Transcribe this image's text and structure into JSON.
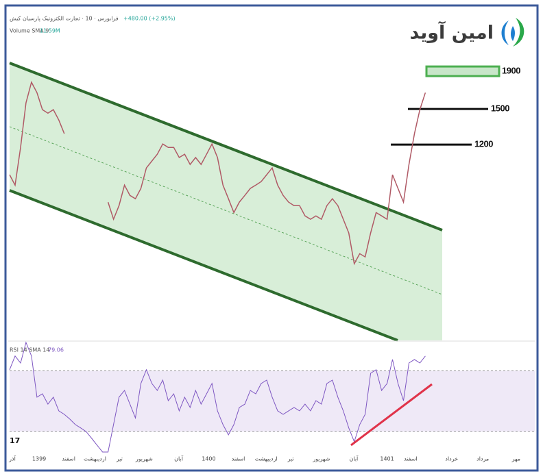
{
  "brand": "امین آوید",
  "chart_data": [
    {
      "type": "line",
      "title": "فرابورس · 10 · تجارت الکترونیک پارسیان کیش",
      "change": "+480.00 (+2.95%)",
      "volume_label": "Volume SMA 9",
      "volume_value": "11.59M",
      "log_scale": true,
      "color": "#b05a66",
      "xlim": [
        0,
        96
      ],
      "ylim": [
        352,
        2845
      ],
      "xticks": [
        {
          "value": 0.5,
          "label": "آذر"
        },
        {
          "value": 5.4,
          "label": "1399"
        },
        {
          "value": 10.8,
          "label": "اسفند"
        },
        {
          "value": 15.6,
          "label": "اردیبهشت"
        },
        {
          "value": 20.1,
          "label": "تیر"
        },
        {
          "value": 24.6,
          "label": "شهریور"
        },
        {
          "value": 30.9,
          "label": "آبان"
        },
        {
          "value": 36.4,
          "label": "1400"
        },
        {
          "value": 41.8,
          "label": "اسفند"
        },
        {
          "value": 46.9,
          "label": "اردیبهشت"
        },
        {
          "value": 51.4,
          "label": "تیر"
        },
        {
          "value": 57,
          "label": "شهریور"
        },
        {
          "value": 62.9,
          "label": "آبان"
        },
        {
          "value": 69,
          "label": "1401"
        },
        {
          "value": 73.3,
          "label": "اسفند"
        },
        {
          "value": 80.8,
          "label": "خرداد"
        },
        {
          "value": 86.5,
          "label": "مرداد"
        },
        {
          "value": 92.6,
          "label": "مهر"
        }
      ],
      "levels": [
        1900,
        1500,
        1200
      ],
      "values": [
        994,
        931,
        1179,
        1559,
        1774,
        1662,
        1494,
        1462,
        1494,
        1400,
        1285,
        null,
        null,
        null,
        null,
        null,
        null,
        null,
        837,
        752,
        819,
        931,
        873,
        855,
        912,
        1037,
        1083,
        1130,
        1205,
        1179,
        1179,
        1107,
        1130,
        1060,
        1107,
        1060,
        1130,
        1205,
        1107,
        931,
        855,
        784,
        837,
        873,
        912,
        931,
        952,
        994,
        1037,
        931,
        873,
        837,
        819,
        819,
        768,
        752,
        768,
        752,
        819,
        855,
        819,
        752,
        690,
        569,
        606,
        594,
        690,
        784,
        768,
        752,
        994,
        912,
        837,
        1060,
        1285,
        1494,
        1662
      ]
    },
    {
      "type": "line",
      "title": "RSI 14 SMA 14",
      "last_value": 79.06,
      "color": "#7e57c2",
      "xlim": [
        0,
        96
      ],
      "ylim": [
        16.6,
        89.4
      ],
      "bands": [
        70,
        30
      ],
      "values": [
        70.6,
        79.6,
        75,
        88.5,
        79.6,
        52.6,
        54.8,
        48,
        52.6,
        43.6,
        41.3,
        38.2,
        34.6,
        32.4,
        30,
        25.6,
        21,
        16.6,
        16.6,
        34.6,
        52.6,
        57,
        48,
        39,
        61.6,
        70.6,
        61.6,
        57,
        63.8,
        50.3,
        54.8,
        43.6,
        52.6,
        45.8,
        57,
        48,
        54.8,
        61.6,
        43.6,
        34.6,
        27.9,
        34.6,
        45.8,
        48,
        57,
        54.8,
        61.6,
        63.8,
        52.6,
        43.6,
        41.3,
        43.6,
        45.8,
        43.6,
        48,
        43.6,
        50.3,
        48,
        61.6,
        63.8,
        52.6,
        43.6,
        32.4,
        23.4,
        34.6,
        41.3,
        68.3,
        70.6,
        57,
        61.6,
        77.3,
        61.6,
        50.3,
        75,
        77.3,
        75,
        79.6
      ]
    }
  ]
}
